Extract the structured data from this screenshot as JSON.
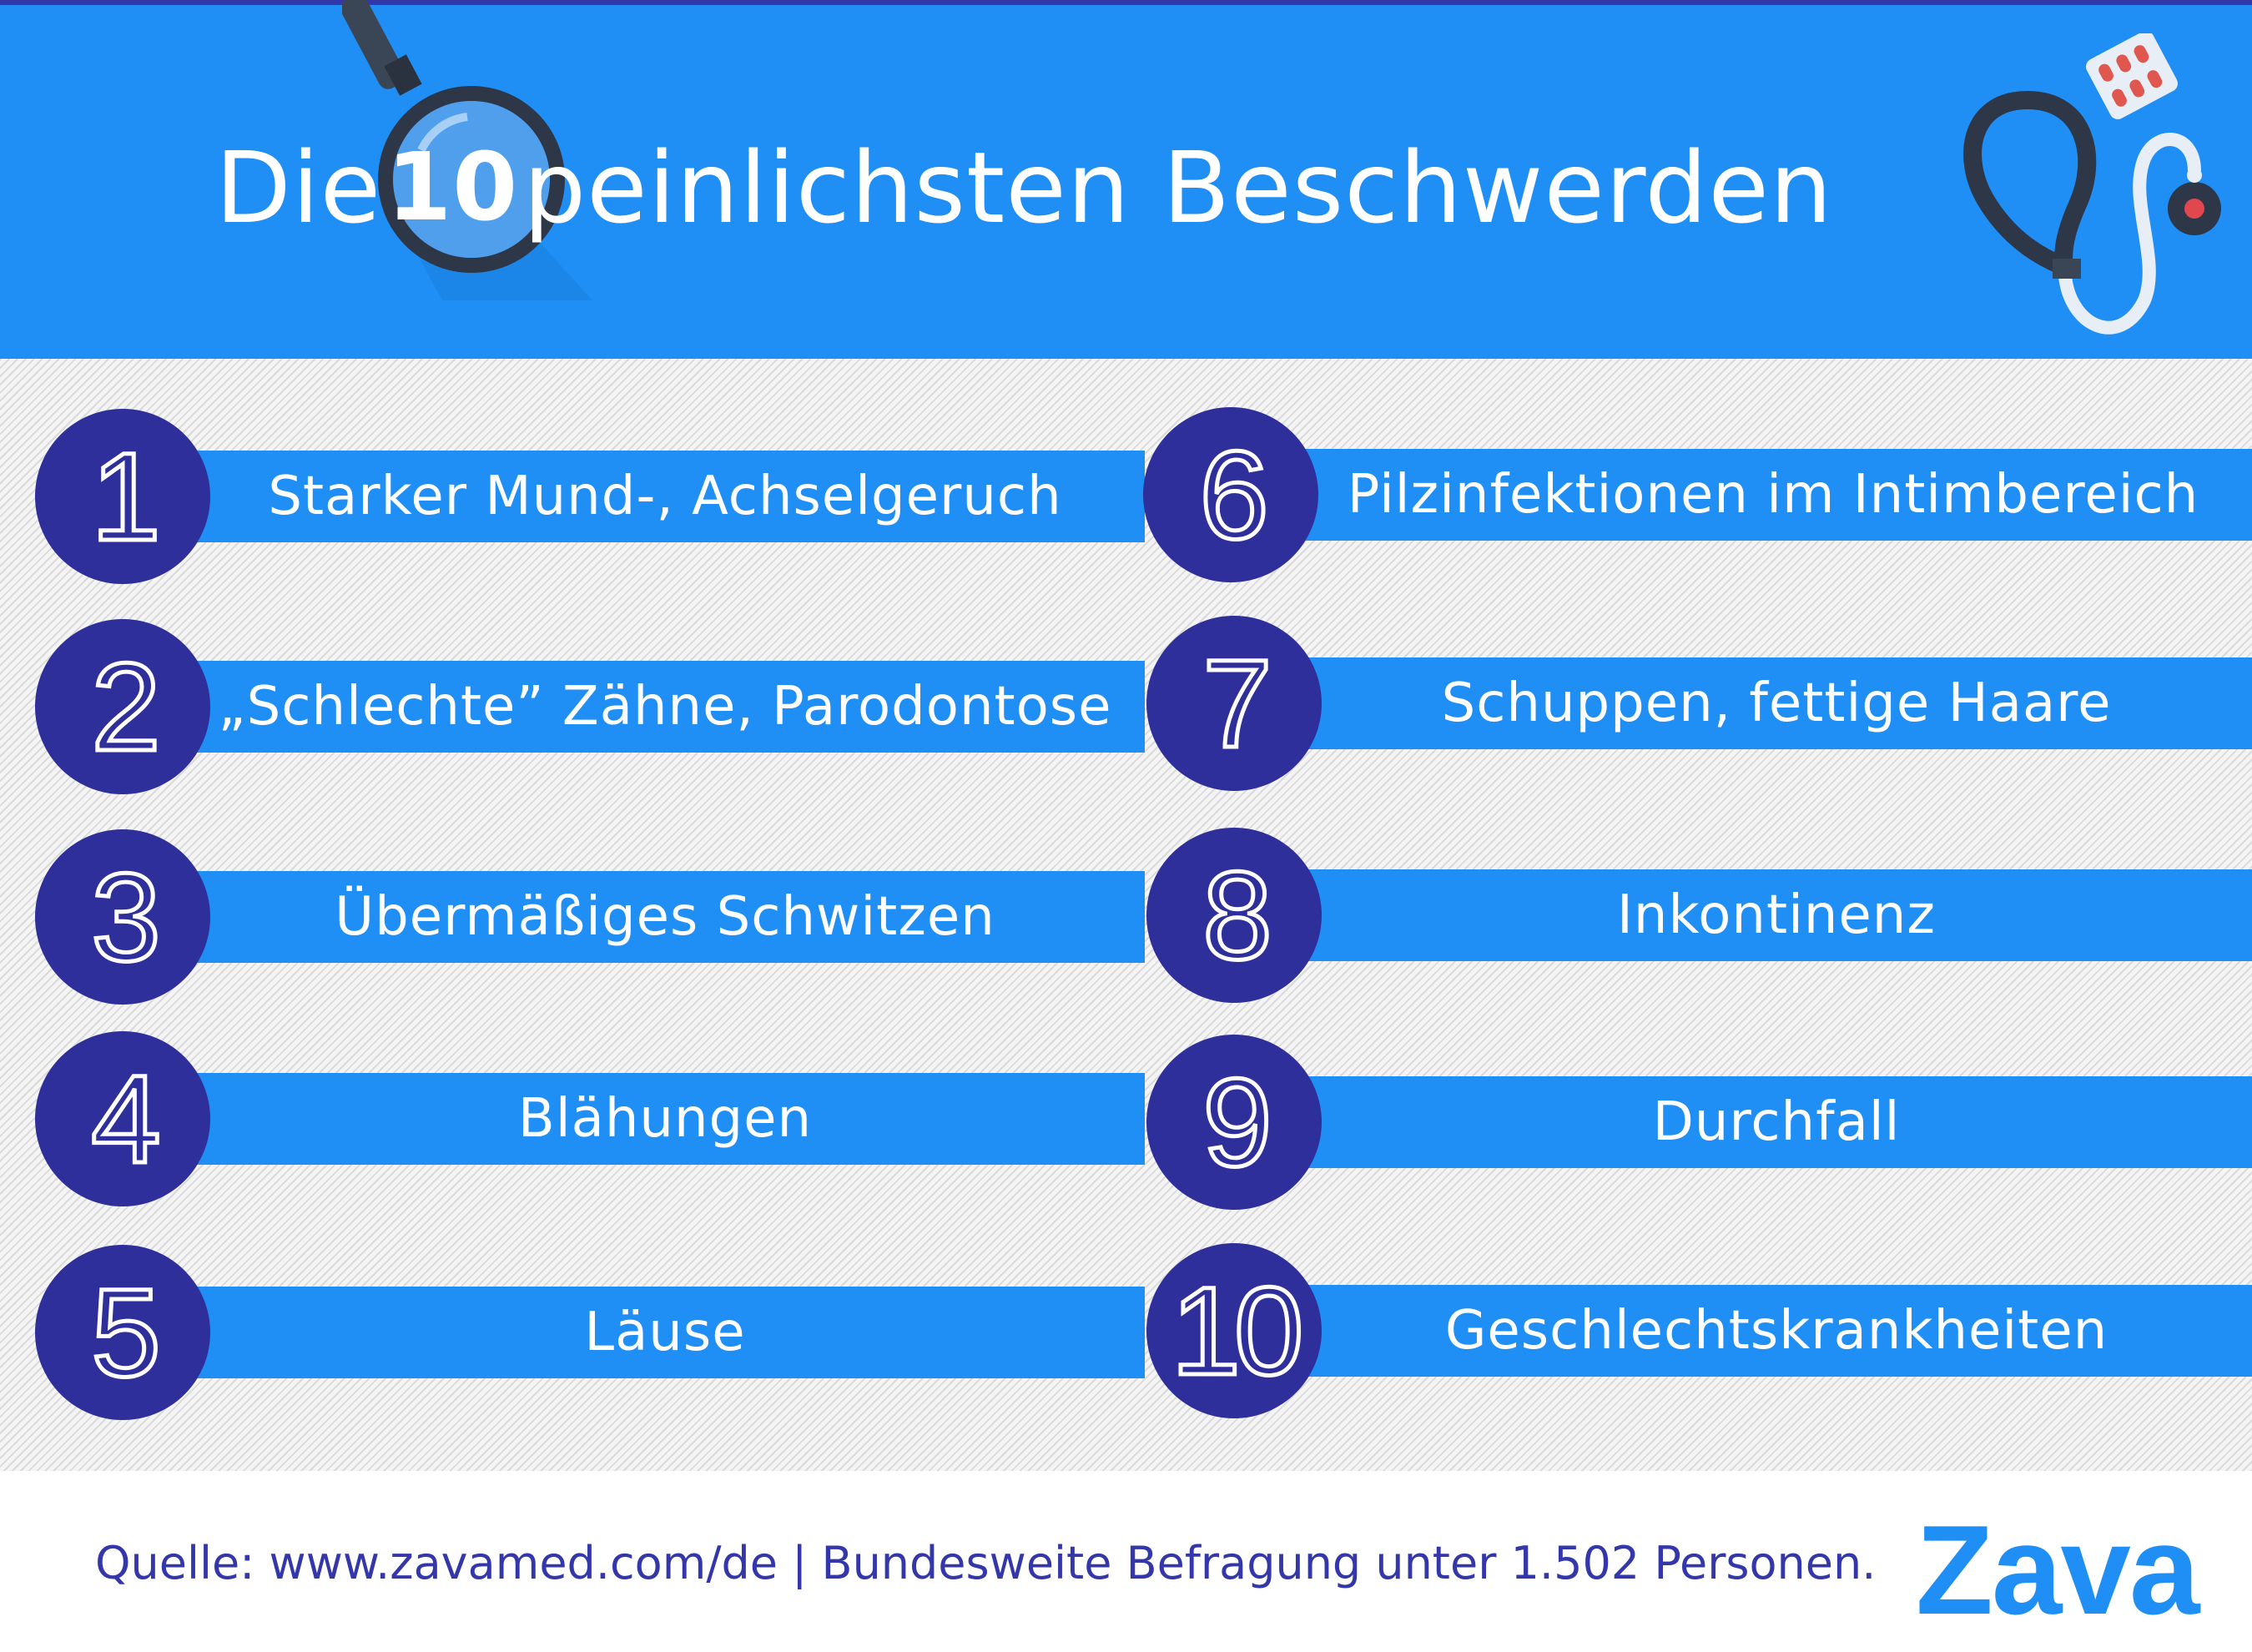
{
  "header": {
    "title_prefix": "Die",
    "title_number": "10",
    "title_suffix": "peinlichsten Beschwerden"
  },
  "items": [
    {
      "rank": "1",
      "label": "Starker Mund-, Achselgeruch"
    },
    {
      "rank": "2",
      "label": "„Schlechte” Zähne, Parodontose"
    },
    {
      "rank": "3",
      "label": "Übermäßiges Schwitzen"
    },
    {
      "rank": "4",
      "label": "Blähungen"
    },
    {
      "rank": "5",
      "label": "Läuse"
    },
    {
      "rank": "6",
      "label": "Pilzinfektionen im Intimbereich"
    },
    {
      "rank": "7",
      "label": "Schuppen, fettige Haare"
    },
    {
      "rank": "8",
      "label": "Inkontinenz"
    },
    {
      "rank": "9",
      "label": "Durchfall"
    },
    {
      "rank": "10",
      "label": "Geschlechtskrankheiten"
    }
  ],
  "footer": {
    "source": "Quelle: www.zavamed.com/de | Bundesweite Befragung unter 1.502 Personen.",
    "logo": "Zava"
  },
  "colors": {
    "header_blue": "#1f8ff5",
    "circle_navy": "#2e2f9a",
    "footer_text": "#3437a9"
  },
  "icons": [
    "magnifier-icon",
    "stethoscope-icon",
    "pill-blister-icon"
  ]
}
